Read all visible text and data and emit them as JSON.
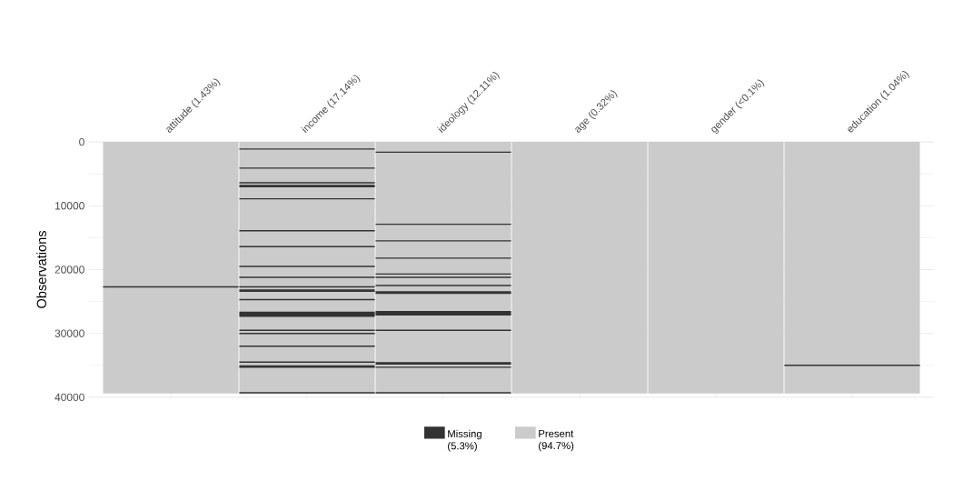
{
  "chart_data": {
    "type": "bar",
    "ylabel": "Observations",
    "categories": [
      "attitude (1.43%)",
      "income (17.14%)",
      "ideology (12.11%)",
      "age (0.32%)",
      "gender (<0.1%)",
      "education (1.04%)"
    ],
    "ylim": [
      40000,
      0
    ],
    "yticks": [
      0,
      10000,
      20000,
      30000,
      40000
    ],
    "grid": true,
    "legend": "bottom",
    "series": [
      {
        "name": "Present (94.7%)",
        "color": "#cbcbcb",
        "base": [
          0,
          0,
          0,
          0,
          0,
          0
        ],
        "values": [
          39400,
          39400,
          39400,
          39400,
          39400,
          39400
        ]
      },
      {
        "name": "Missing (5.3%)",
        "color": "#333333",
        "base": [
          22600,
          1000,
          1500,
          null,
          null,
          34900
        ],
        "values": [
          200,
          200,
          200,
          null,
          null,
          200
        ]
      },
      {
        "color": "#333333",
        "base": [
          null,
          4000,
          12800,
          null,
          null,
          null
        ],
        "values": [
          null,
          200,
          200,
          null,
          null,
          null
        ]
      },
      {
        "color": "#333333",
        "base": [
          null,
          6300,
          15400,
          null,
          null,
          null
        ],
        "values": [
          null,
          200,
          200,
          null,
          null,
          null
        ]
      },
      {
        "color": "#333333",
        "base": [
          null,
          6700,
          18100,
          null,
          null,
          null
        ],
        "values": [
          null,
          400,
          200,
          null,
          null,
          null
        ]
      },
      {
        "color": "#333333",
        "base": [
          null,
          8800,
          20600,
          null,
          null,
          null
        ],
        "values": [
          null,
          200,
          200,
          null,
          null,
          null
        ]
      },
      {
        "color": "#333333",
        "base": [
          null,
          13800,
          21100,
          null,
          null,
          null
        ],
        "values": [
          null,
          200,
          200,
          null,
          null,
          null
        ]
      },
      {
        "color": "#333333",
        "base": [
          null,
          16300,
          22400,
          null,
          null,
          null
        ],
        "values": [
          null,
          200,
          200,
          null,
          null,
          null
        ]
      },
      {
        "color": "#333333",
        "base": [
          null,
          19400,
          23400,
          null,
          null,
          null
        ],
        "values": [
          null,
          200,
          400,
          null,
          null,
          null
        ]
      },
      {
        "color": "#333333",
        "base": [
          null,
          21100,
          26500,
          null,
          null,
          null
        ],
        "values": [
          null,
          200,
          700,
          null,
          null,
          null
        ]
      },
      {
        "color": "#333333",
        "base": [
          null,
          22600,
          29400,
          null,
          null,
          null
        ],
        "values": [
          null,
          200,
          200,
          null,
          null,
          null
        ]
      },
      {
        "color": "#333333",
        "base": [
          null,
          23100,
          34500,
          null,
          null,
          null
        ],
        "values": [
          null,
          400,
          400,
          null,
          null,
          null
        ]
      },
      {
        "color": "#333333",
        "base": [
          null,
          24600,
          35200,
          null,
          null,
          null
        ],
        "values": [
          null,
          200,
          200,
          null,
          null,
          null
        ]
      },
      {
        "color": "#333333",
        "base": [
          null,
          26600,
          39200,
          null,
          null,
          null
        ],
        "values": [
          null,
          800,
          200,
          null,
          null,
          null
        ]
      },
      {
        "color": "#333333",
        "base": [
          null,
          29400,
          null,
          null,
          null,
          null
        ],
        "values": [
          null,
          200,
          null,
          null,
          null,
          null
        ]
      },
      {
        "color": "#333333",
        "base": [
          null,
          29900,
          null,
          null,
          null,
          null
        ],
        "values": [
          null,
          200,
          null,
          null,
          null,
          null
        ]
      },
      {
        "color": "#333333",
        "base": [
          null,
          31900,
          null,
          null,
          null,
          null
        ],
        "values": [
          null,
          200,
          null,
          null,
          null,
          null
        ]
      },
      {
        "color": "#333333",
        "base": [
          null,
          34400,
          null,
          null,
          null,
          null
        ],
        "values": [
          null,
          200,
          null,
          null,
          null,
          null
        ]
      },
      {
        "color": "#333333",
        "base": [
          null,
          35000,
          null,
          null,
          null,
          null
        ],
        "values": [
          null,
          400,
          null,
          null,
          null,
          null
        ]
      },
      {
        "color": "#333333",
        "base": [
          null,
          39200,
          null,
          null,
          null,
          null
        ],
        "values": [
          null,
          200,
          null,
          null,
          null,
          null
        ]
      }
    ]
  }
}
